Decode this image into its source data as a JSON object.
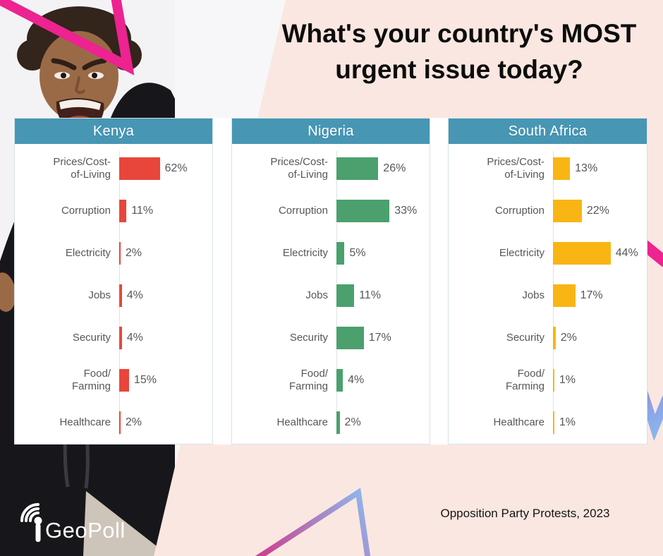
{
  "header": {
    "line1": "What's your country's MOST",
    "line2": "urgent issue today?"
  },
  "footer": {
    "source": "Opposition Party Protests, 2023"
  },
  "logo": {
    "brand": "GeoPoll",
    "icon": "signal-antenna-icon"
  },
  "colors": {
    "panel_header_teal": "#4796b4",
    "kenya_bar_red": "#e8463a",
    "nigeria_bar_green": "#4ba06e",
    "south_africa_bar_amber": "#f9b513",
    "pink_background": "#fbe7e1",
    "magenta_accent": "#ec2390",
    "gradient_blue": "#8ab6ec",
    "gradient_pink": "#c94693",
    "label_gray": "#575757"
  },
  "chart_data": [
    {
      "type": "bar",
      "orientation": "horizontal",
      "title": "Kenya",
      "categories": [
        "Prices/Cost-\nof-Living",
        "Corruption",
        "Electricity",
        "Jobs",
        "Security",
        "Food/\nFarming",
        "Healthcare"
      ],
      "values": [
        62,
        11,
        2,
        4,
        4,
        15,
        2
      ],
      "value_labels": [
        "62%",
        "11%",
        "2%",
        "4%",
        "4%",
        "15%",
        "2%"
      ],
      "unit": "%",
      "bar_color": "#e8463a",
      "xlim": [
        0,
        140
      ],
      "grid": false,
      "legend": "none"
    },
    {
      "type": "bar",
      "orientation": "horizontal",
      "title": "Nigeria",
      "categories": [
        "Prices/Cost-\nof-Living",
        "Corruption",
        "Electricity",
        "Jobs",
        "Security",
        "Food/\nFarming",
        "Healthcare"
      ],
      "values": [
        26,
        33,
        5,
        11,
        17,
        4,
        2
      ],
      "value_labels": [
        "26%",
        "33%",
        "5%",
        "11%",
        "17%",
        "4%",
        "2%"
      ],
      "unit": "%",
      "bar_color": "#4ba06e",
      "xlim": [
        0,
        57
      ],
      "grid": false,
      "legend": "none"
    },
    {
      "type": "bar",
      "orientation": "horizontal",
      "title": "South Africa",
      "categories": [
        "Prices/Cost-\nof-Living",
        "Corruption",
        "Electricity",
        "Jobs",
        "Security",
        "Food/\nFarming",
        "Healthcare"
      ],
      "values": [
        13,
        22,
        44,
        17,
        2,
        1,
        1
      ],
      "value_labels": [
        "13%",
        "22%",
        "44%",
        "17%",
        "2%",
        "1%",
        "1%"
      ],
      "unit": "%",
      "bar_color": "#f9b513",
      "xlim": [
        0,
        70
      ],
      "grid": false,
      "legend": "none"
    }
  ]
}
